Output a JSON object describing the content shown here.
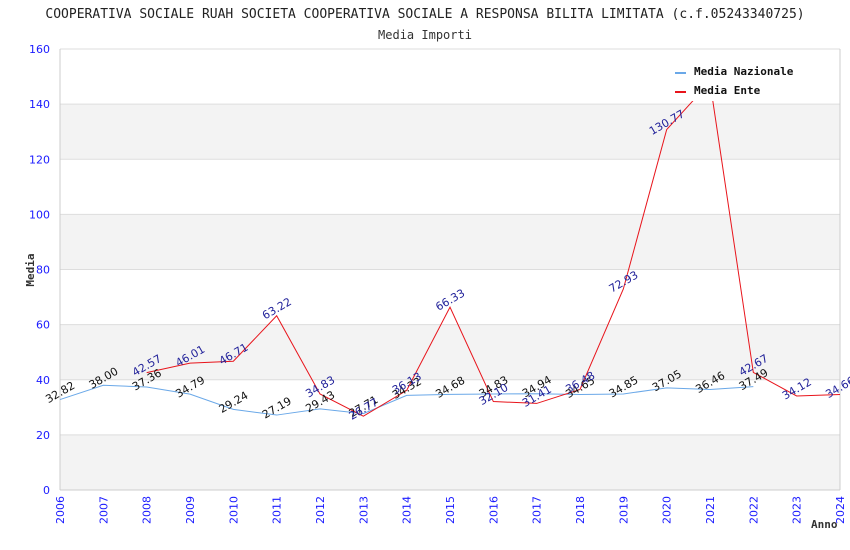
{
  "chart_data": {
    "type": "line",
    "title": "COOPERATIVA SOCIALE RUAH SOCIETA COOPERATIVA SOCIALE A RESPONSA BILITA LIMITATA (c.f.05243340725)",
    "subtitle": "Media Importi",
    "xlabel": "Anno",
    "ylabel": "Media",
    "ylim": [
      0,
      160
    ],
    "yticks": [
      "0",
      "20",
      "40",
      "60",
      "80",
      "100",
      "120",
      "140",
      "160"
    ],
    "ytick_values": [
      0,
      20,
      40,
      60,
      80,
      100,
      120,
      140,
      160
    ],
    "categories": [
      "2006",
      "2007",
      "2008",
      "2009",
      "2010",
      "2011",
      "2012",
      "2013",
      "2014",
      "2015",
      "2016",
      "2017",
      "2018",
      "2019",
      "2020",
      "2021",
      "2022",
      "2023",
      "2024"
    ],
    "grid": true,
    "legend_position": "top-right",
    "series": [
      {
        "name": "Media Nazionale",
        "color": "#6aa8e8",
        "values": [
          32.82,
          38.0,
          37.36,
          34.79,
          29.24,
          27.19,
          29.43,
          27.71,
          34.32,
          34.68,
          34.83,
          34.94,
          34.65,
          34.85,
          37.05,
          36.46,
          37.49,
          null,
          null
        ],
        "labels": [
          "32.82",
          "38.00",
          "37.36",
          "34.79",
          "29.24",
          "27.19",
          "29.43",
          "27.71",
          "34.32",
          "34.68",
          "34.83",
          "34.94",
          "34.65",
          "34.85",
          "37.05",
          "36.46",
          "37.49",
          "",
          ""
        ]
      },
      {
        "name": "Media Ente",
        "color": "#e8141b",
        "values": [
          null,
          null,
          42.57,
          46.01,
          46.71,
          63.22,
          34.83,
          26.77,
          36.13,
          66.33,
          32.1,
          31.41,
          36.48,
          72.93,
          130.77,
          148.0,
          42.67,
          34.12,
          34.66
        ],
        "labels": [
          "",
          "",
          "42.57",
          "46.01",
          "46.71",
          "63.22",
          "34.83",
          "26.77",
          "36.13",
          "66.33",
          "32.10",
          "31.41",
          "36.48",
          "72.93",
          "130.77",
          "",
          "42.67",
          "34.12",
          "34.66"
        ]
      }
    ]
  }
}
